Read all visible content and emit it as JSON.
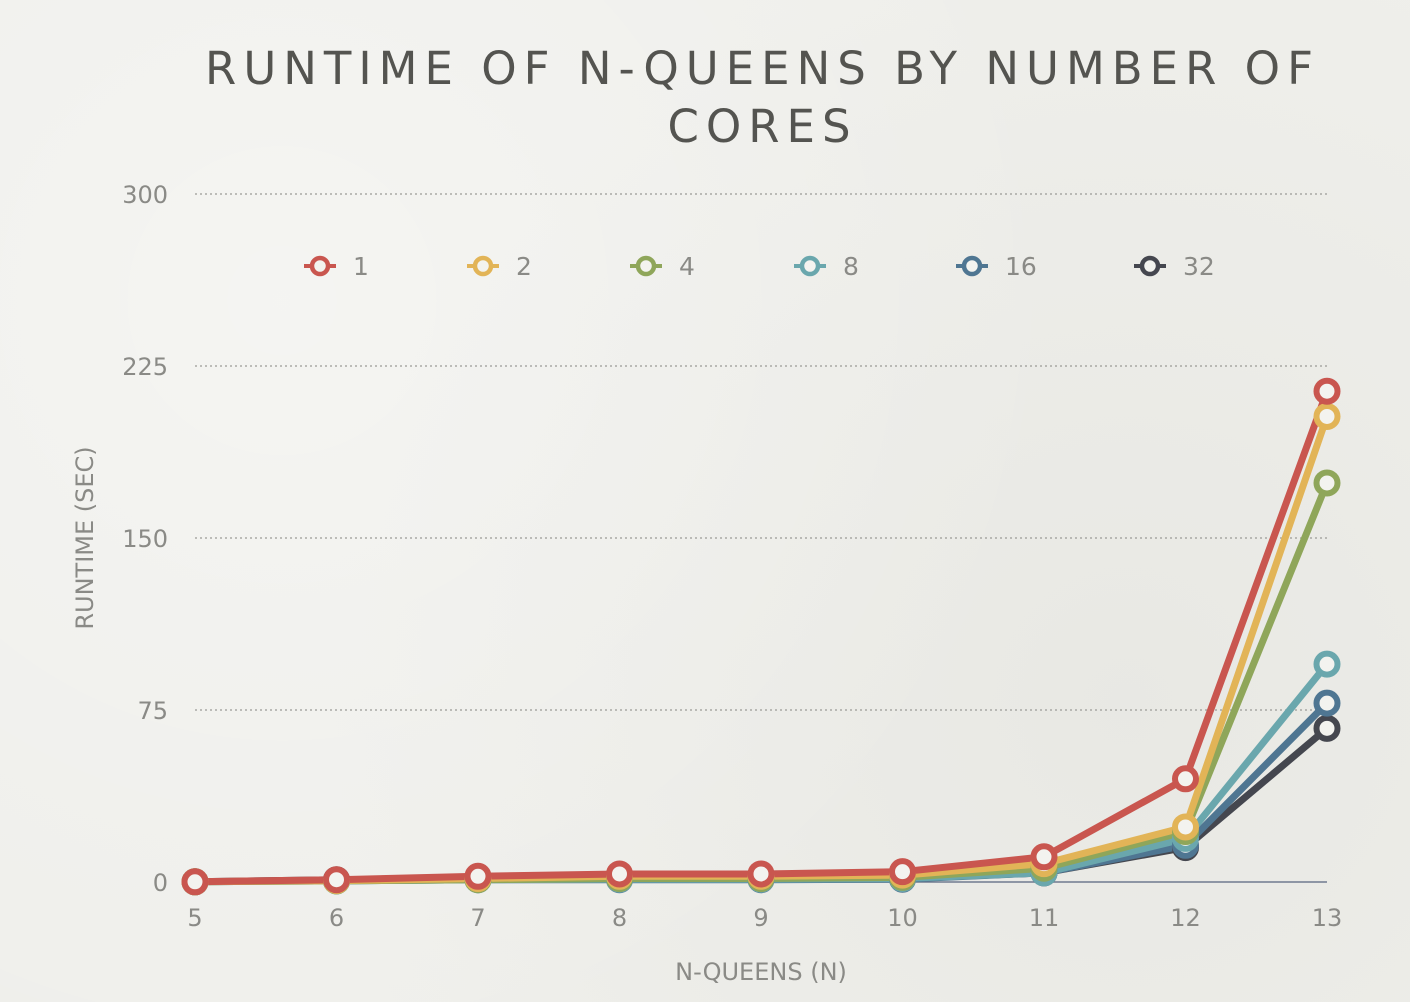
{
  "chart_data": {
    "type": "line",
    "title": "RUNTIME OF N-QUEENS BY NUMBER OF CORES",
    "xlabel": "N-QUEENS (N)",
    "ylabel": "RUNTIME (SEC)",
    "x": [
      5,
      6,
      7,
      8,
      9,
      10,
      11,
      12,
      13
    ],
    "y_ticks": [
      0,
      75,
      150,
      225,
      300
    ],
    "ylim": [
      0,
      300
    ],
    "grid": "horizontal dotted",
    "legend_position": "top",
    "series": [
      {
        "name": "1",
        "color": "#c9564f",
        "values": [
          0.1,
          1,
          2.5,
          3.5,
          3.5,
          4.5,
          11,
          45,
          214
        ]
      },
      {
        "name": "2",
        "color": "#e2b457",
        "values": [
          0.1,
          0.6,
          1.5,
          2.5,
          2.5,
          3,
          8,
          24,
          203
        ]
      },
      {
        "name": "4",
        "color": "#8fa65a",
        "values": [
          0.1,
          0.5,
          1,
          1.5,
          1.5,
          2,
          6,
          22,
          174
        ]
      },
      {
        "name": "8",
        "color": "#6aa7ad",
        "values": [
          0.1,
          0.5,
          1,
          1.2,
          1.2,
          1.5,
          4,
          19,
          95
        ]
      },
      {
        "name": "16",
        "color": "#4f7692",
        "values": [
          0.1,
          0.5,
          1,
          1,
          1,
          1.2,
          4,
          16,
          78
        ]
      },
      {
        "name": "32",
        "color": "#45474f",
        "values": [
          0.1,
          1,
          1.5,
          1.5,
          1.5,
          1.5,
          4,
          15,
          67
        ]
      }
    ]
  }
}
